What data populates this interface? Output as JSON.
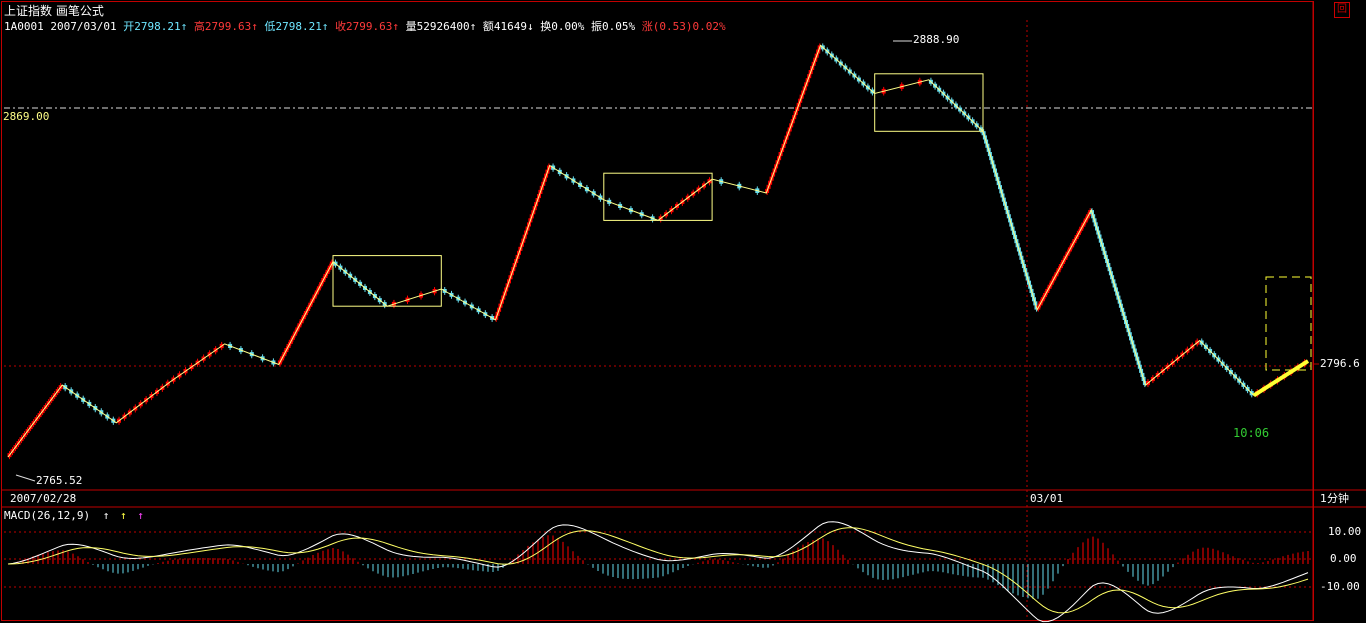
{
  "header": {
    "index_name": "上证指数",
    "formula_name": "画笔公式",
    "code": "1A0001",
    "date": "2007/03/01",
    "open": "开2798.21↑",
    "high": "高2799.63↑",
    "low": "低2798.21↑",
    "close": "收2799.63↑",
    "volume": "量52926400↑",
    "amount": "额41649↓",
    "turnover": "换0.00%",
    "amplitude": "振0.05%",
    "change": "涨(0.53)0.02%"
  },
  "price_labels": {
    "ref_line": "2869.00",
    "high_marker": "2888.90",
    "low_marker": "2765.52",
    "last_price": "2796.6",
    "time_marker": "10:06"
  },
  "axis": {
    "date_left": "2007/02/28",
    "date_right": "03/01",
    "period": "1分钟"
  },
  "macd": {
    "label": "MACD(26,12,9)",
    "ticks": [
      "10.00",
      "0.00",
      "-10.00"
    ]
  },
  "colors": {
    "up": "#ff0000",
    "down": "#66ddee",
    "frame": "#c00000",
    "pen": "#ffff88",
    "dif": "#ffffff",
    "dea": "#ffff66"
  },
  "chart_data": [
    {
      "type": "candlestick",
      "title": "上证指数 画笔公式",
      "ylim": [
        2759,
        2896
      ],
      "reference_line": 2869.0,
      "high": 2888.9,
      "low": 2765.52,
      "last": 2796.6,
      "pen_points": [
        2768,
        2789,
        2778,
        2790,
        2801,
        2795,
        2825,
        2812,
        2817,
        2808,
        2853,
        2843,
        2837,
        2849,
        2845,
        2888,
        2874,
        2878,
        2863,
        2811,
        2840,
        2789,
        2802,
        2786,
        2796
      ]
    },
    {
      "type": "macd",
      "title": "MACD(26,12,9)",
      "ylim": [
        -14,
        14
      ],
      "ticks": [
        10,
        0,
        -10
      ]
    }
  ]
}
